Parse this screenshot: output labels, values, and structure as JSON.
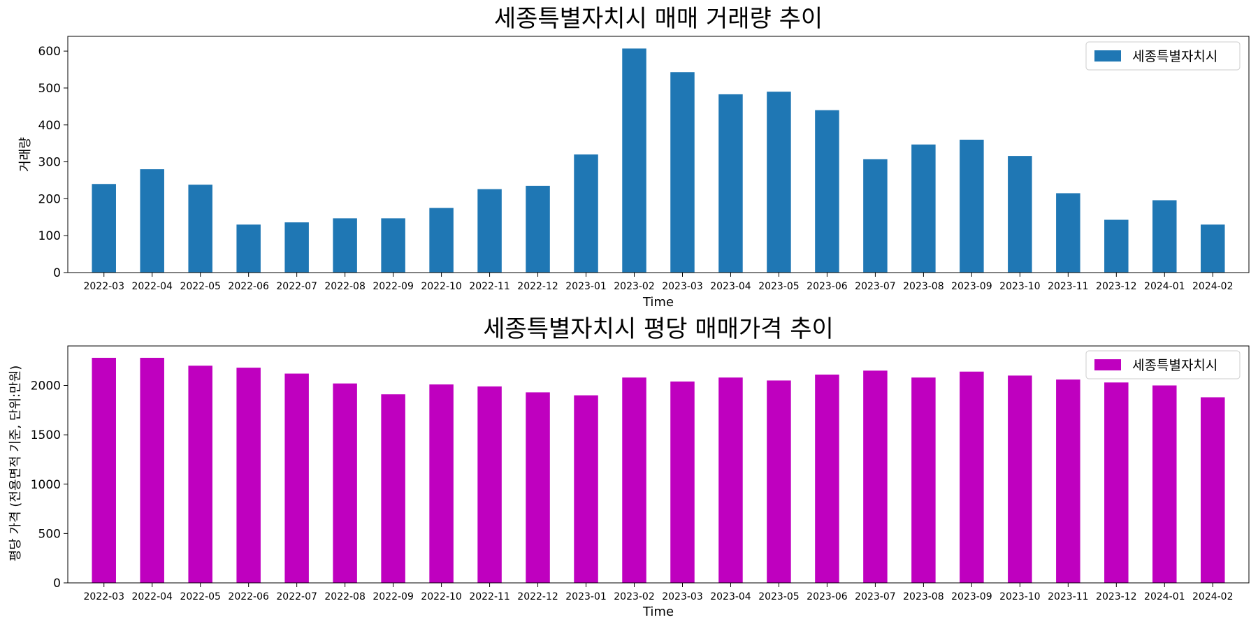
{
  "chart_data": [
    {
      "type": "bar",
      "title": "세종특별자치시 매매 거래량 추이",
      "xlabel": "Time",
      "ylabel": "거래량",
      "ylim": [
        0,
        640
      ],
      "yticks": [
        0,
        100,
        200,
        300,
        400,
        500,
        600
      ],
      "grid": false,
      "legend_position": "top-right",
      "categories": [
        "2022-03",
        "2022-04",
        "2022-05",
        "2022-06",
        "2022-07",
        "2022-08",
        "2022-09",
        "2022-10",
        "2022-11",
        "2022-12",
        "2023-01",
        "2023-02",
        "2023-03",
        "2023-04",
        "2023-05",
        "2023-06",
        "2023-07",
        "2023-08",
        "2023-09",
        "2023-10",
        "2023-11",
        "2023-12",
        "2024-01",
        "2024-02"
      ],
      "series": [
        {
          "name": "세종특별자치시",
          "color": "#1f77b4",
          "values": [
            240,
            280,
            238,
            130,
            136,
            147,
            147,
            175,
            226,
            235,
            320,
            607,
            543,
            483,
            490,
            440,
            307,
            347,
            360,
            316,
            215,
            143,
            196,
            130
          ]
        }
      ]
    },
    {
      "type": "bar",
      "title": "세종특별자치시 평당 매매가격 추이",
      "xlabel": "Time",
      "ylabel": "평당 가격 (전용면적 기준, 단위:만원)",
      "ylim": [
        0,
        2400
      ],
      "yticks": [
        0,
        500,
        1000,
        1500,
        2000
      ],
      "grid": false,
      "legend_position": "top-right",
      "categories": [
        "2022-03",
        "2022-04",
        "2022-05",
        "2022-06",
        "2022-07",
        "2022-08",
        "2022-09",
        "2022-10",
        "2022-11",
        "2022-12",
        "2023-01",
        "2023-02",
        "2023-03",
        "2023-04",
        "2023-05",
        "2023-06",
        "2023-07",
        "2023-08",
        "2023-09",
        "2023-10",
        "2023-11",
        "2023-12",
        "2024-01",
        "2024-02"
      ],
      "series": [
        {
          "name": "세종특별자치시",
          "color": "#bf00bf",
          "values": [
            2280,
            2280,
            2200,
            2180,
            2120,
            2020,
            1910,
            2010,
            1990,
            1930,
            1900,
            2080,
            2040,
            2080,
            2050,
            2110,
            2150,
            2080,
            2140,
            2100,
            2060,
            2030,
            2000,
            1880
          ]
        }
      ]
    }
  ]
}
